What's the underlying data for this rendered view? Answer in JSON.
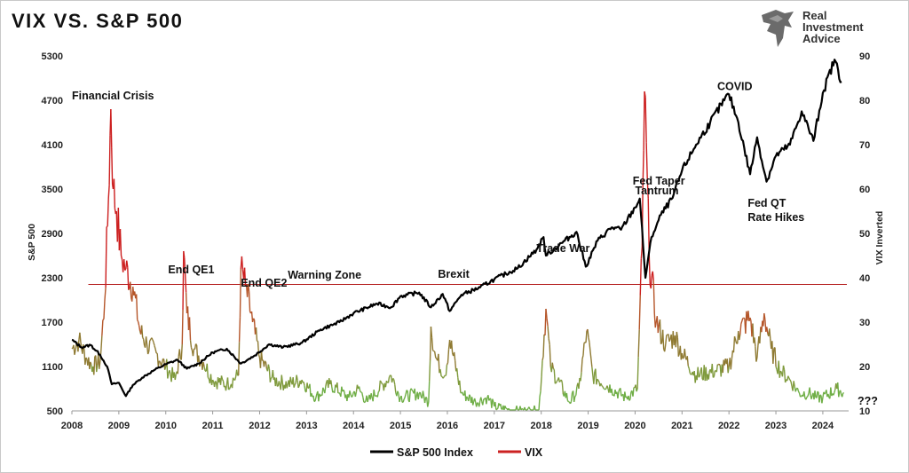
{
  "chart_data": {
    "type": "line",
    "title": "VIX VS. S&P 500",
    "brand": "Real Investment Advice",
    "brand_lines": [
      "Real",
      "Investment",
      "Advice"
    ],
    "left_axis": {
      "label": "S&P 500",
      "min": 500,
      "max": 5300,
      "ticks": [
        "500",
        "1100",
        "1700",
        "2300",
        "2900",
        "3500",
        "4100",
        "4700",
        "5300"
      ]
    },
    "right_axis": {
      "label": "VIX Inverted",
      "min": 10,
      "max": 90,
      "ticks": [
        "10",
        "20",
        "30",
        "40",
        "50",
        "60",
        "70",
        "80",
        "90"
      ]
    },
    "x_axis": {
      "min": 2008,
      "max": 2024.55,
      "ticks": [
        "2008",
        "2009",
        "2010",
        "2011",
        "2012",
        "2013",
        "2014",
        "2015",
        "2016",
        "2017",
        "2018",
        "2019",
        "2020",
        "2021",
        "2022",
        "2023",
        "2024"
      ]
    },
    "threshold": {
      "label": "Warning Zone",
      "vix": 38.5
    },
    "question_mark": "???",
    "legend": {
      "position": "bottom-center",
      "items": [
        {
          "name": "S&P 500 Index",
          "color": "#000000"
        },
        {
          "name": "VIX",
          "color": "#cc2222"
        }
      ]
    },
    "annotations": [
      {
        "text": "Financial Crisis",
        "x": 2008.0,
        "sp": 4710
      },
      {
        "text": "End QE1",
        "x": 2010.05,
        "sp": 2360
      },
      {
        "text": "End QE2",
        "x": 2011.6,
        "sp": 2180
      },
      {
        "text": "Warning Zone",
        "x": 2012.6,
        "sp": 2290
      },
      {
        "text": "Brexit",
        "x": 2015.8,
        "sp": 2300
      },
      {
        "text": "Trade War",
        "x": 2017.9,
        "sp": 2650
      },
      {
        "text": "Fed Taper",
        "x": 2019.95,
        "sp": 3560
      },
      {
        "text": "Tantrum",
        "x": 2020.0,
        "sp": 3430
      },
      {
        "text": "COVID",
        "x": 2021.75,
        "sp": 4840
      },
      {
        "text": "Fed QT",
        "x": 2022.4,
        "sp": 3260
      },
      {
        "text": "Rate Hikes",
        "x": 2022.4,
        "sp": 3070
      }
    ],
    "series": [
      {
        "name": "S&P 500 Index",
        "color": "#000000",
        "axis": "left",
        "points": [
          [
            2008.0,
            1460
          ],
          [
            2008.2,
            1360
          ],
          [
            2008.4,
            1390
          ],
          [
            2008.6,
            1260
          ],
          [
            2008.75,
            1100
          ],
          [
            2008.85,
            860
          ],
          [
            2009.0,
            880
          ],
          [
            2009.15,
            700
          ],
          [
            2009.3,
            850
          ],
          [
            2009.5,
            950
          ],
          [
            2009.75,
            1050
          ],
          [
            2010.0,
            1130
          ],
          [
            2010.25,
            1190
          ],
          [
            2010.45,
            1070
          ],
          [
            2010.7,
            1140
          ],
          [
            2011.0,
            1290
          ],
          [
            2011.3,
            1340
          ],
          [
            2011.6,
            1140
          ],
          [
            2011.9,
            1250
          ],
          [
            2012.2,
            1400
          ],
          [
            2012.5,
            1360
          ],
          [
            2012.9,
            1420
          ],
          [
            2013.3,
            1600
          ],
          [
            2013.7,
            1700
          ],
          [
            2014.0,
            1820
          ],
          [
            2014.5,
            1950
          ],
          [
            2014.8,
            1900
          ],
          [
            2015.0,
            2050
          ],
          [
            2015.4,
            2100
          ],
          [
            2015.65,
            1900
          ],
          [
            2015.9,
            2080
          ],
          [
            2016.05,
            1850
          ],
          [
            2016.3,
            2070
          ],
          [
            2016.7,
            2170
          ],
          [
            2017.0,
            2280
          ],
          [
            2017.5,
            2430
          ],
          [
            2017.9,
            2680
          ],
          [
            2018.05,
            2850
          ],
          [
            2018.1,
            2600
          ],
          [
            2018.5,
            2800
          ],
          [
            2018.75,
            2920
          ],
          [
            2018.95,
            2450
          ],
          [
            2019.2,
            2800
          ],
          [
            2019.5,
            2980
          ],
          [
            2019.7,
            2950
          ],
          [
            2020.0,
            3250
          ],
          [
            2020.1,
            3370
          ],
          [
            2020.22,
            2300
          ],
          [
            2020.35,
            2850
          ],
          [
            2020.55,
            3150
          ],
          [
            2020.8,
            3380
          ],
          [
            2021.0,
            3750
          ],
          [
            2021.3,
            4100
          ],
          [
            2021.6,
            4400
          ],
          [
            2021.9,
            4700
          ],
          [
            2022.0,
            4780
          ],
          [
            2022.2,
            4400
          ],
          [
            2022.45,
            3700
          ],
          [
            2022.6,
            4200
          ],
          [
            2022.8,
            3600
          ],
          [
            2023.0,
            3950
          ],
          [
            2023.3,
            4100
          ],
          [
            2023.55,
            4550
          ],
          [
            2023.8,
            4150
          ],
          [
            2024.0,
            4800
          ],
          [
            2024.25,
            5250
          ],
          [
            2024.4,
            4950
          ]
        ]
      },
      {
        "name": "VIX",
        "color": "#cc2222",
        "axis": "right",
        "points": [
          [
            2008.0,
            24
          ],
          [
            2008.15,
            26
          ],
          [
            2008.3,
            22
          ],
          [
            2008.45,
            20
          ],
          [
            2008.6,
            21
          ],
          [
            2008.7,
            35
          ],
          [
            2008.78,
            58
          ],
          [
            2008.83,
            78
          ],
          [
            2008.88,
            60
          ],
          [
            2008.95,
            55
          ],
          [
            2009.05,
            45
          ],
          [
            2009.15,
            42
          ],
          [
            2009.3,
            38
          ],
          [
            2009.45,
            28
          ],
          [
            2009.6,
            25
          ],
          [
            2009.8,
            23
          ],
          [
            2010.0,
            20
          ],
          [
            2010.2,
            17
          ],
          [
            2010.35,
            25
          ],
          [
            2010.38,
            46
          ],
          [
            2010.45,
            32
          ],
          [
            2010.6,
            24
          ],
          [
            2010.8,
            21
          ],
          [
            2011.0,
            17
          ],
          [
            2011.3,
            16
          ],
          [
            2011.55,
            18
          ],
          [
            2011.6,
            42
          ],
          [
            2011.7,
            38
          ],
          [
            2011.85,
            30
          ],
          [
            2012.0,
            22
          ],
          [
            2012.3,
            17
          ],
          [
            2012.6,
            16
          ],
          [
            2012.9,
            17
          ],
          [
            2013.2,
            13
          ],
          [
            2013.5,
            16
          ],
          [
            2013.9,
            13
          ],
          [
            2014.1,
            15
          ],
          [
            2014.3,
            12
          ],
          [
            2014.8,
            18
          ],
          [
            2015.0,
            13
          ],
          [
            2015.4,
            14
          ],
          [
            2015.6,
            12
          ],
          [
            2015.65,
            29
          ],
          [
            2015.75,
            22
          ],
          [
            2015.95,
            18
          ],
          [
            2016.05,
            26
          ],
          [
            2016.3,
            14
          ],
          [
            2016.6,
            12
          ],
          [
            2016.85,
            13
          ],
          [
            2017.0,
            11
          ],
          [
            2017.4,
            10
          ],
          [
            2017.95,
            10
          ],
          [
            2018.1,
            33
          ],
          [
            2018.2,
            20
          ],
          [
            2018.6,
            12
          ],
          [
            2018.8,
            15
          ],
          [
            2018.97,
            28
          ],
          [
            2019.1,
            18
          ],
          [
            2019.5,
            15
          ],
          [
            2019.8,
            13
          ],
          [
            2020.05,
            15
          ],
          [
            2020.15,
            47
          ],
          [
            2020.2,
            82
          ],
          [
            2020.3,
            45
          ],
          [
            2020.45,
            30
          ],
          [
            2020.65,
            25
          ],
          [
            2020.85,
            27
          ],
          [
            2021.0,
            23
          ],
          [
            2021.3,
            18
          ],
          [
            2021.7,
            19
          ],
          [
            2022.0,
            20
          ],
          [
            2022.2,
            28
          ],
          [
            2022.45,
            31
          ],
          [
            2022.6,
            22
          ],
          [
            2022.75,
            32
          ],
          [
            2022.9,
            24
          ],
          [
            2023.1,
            19
          ],
          [
            2023.3,
            17
          ],
          [
            2023.5,
            14
          ],
          [
            2023.7,
            14
          ],
          [
            2023.85,
            13
          ],
          [
            2024.0,
            13
          ],
          [
            2024.3,
            15
          ],
          [
            2024.45,
            14
          ]
        ]
      }
    ]
  }
}
